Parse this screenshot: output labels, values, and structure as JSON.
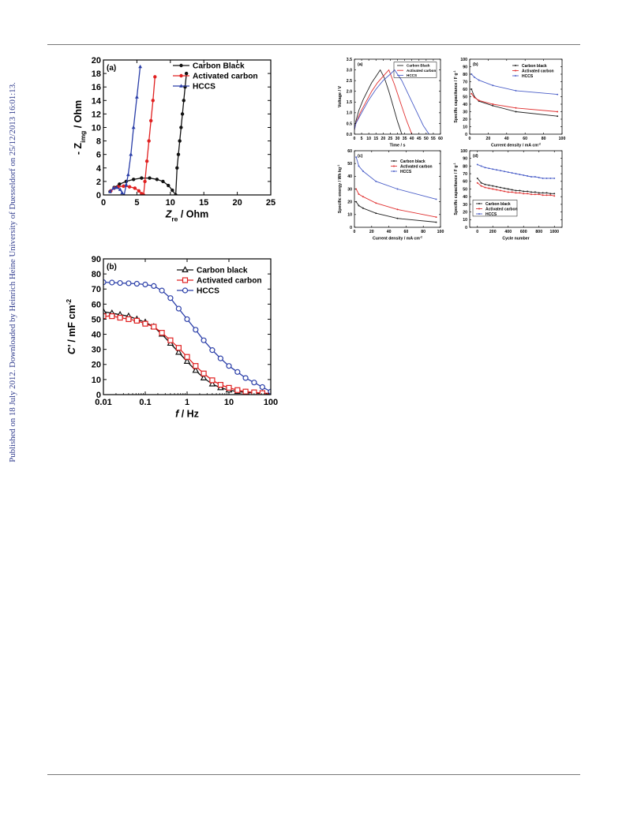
{
  "sidebar": {
    "note": "Published on 18 July 2012. Downloaded by Heinrich Heine University of Duesseldorf on 25/12/2013 16:01:13."
  },
  "chart_data": [
    {
      "panel": "(a)",
      "type": "scatter",
      "xlabel": "Z_re / Ohm",
      "ylabel": "- Z_img / Ohm",
      "xlim": [
        0,
        25
      ],
      "ylim": [
        0,
        20
      ],
      "xticks": [
        0,
        5,
        10,
        15,
        20,
        25
      ],
      "yticks": [
        0,
        2,
        4,
        6,
        8,
        10,
        12,
        14,
        16,
        18,
        20
      ],
      "legend": "top-right",
      "series": [
        {
          "name": "Carbon Black",
          "color": "#111111",
          "marker": "circle",
          "x": [
            1.0,
            1.6,
            2.4,
            3.4,
            4.5,
            5.7,
            6.9,
            8.0,
            8.9,
            9.7,
            10.3,
            10.8,
            11.0,
            11.2,
            11.4,
            11.6,
            11.8,
            12.0,
            12.2,
            12.4
          ],
          "y": [
            0.5,
            1.1,
            1.6,
            2.0,
            2.3,
            2.5,
            2.5,
            2.3,
            2.0,
            1.4,
            0.7,
            0.0,
            4.0,
            6.0,
            8.0,
            10.0,
            12.0,
            14.0,
            16.0,
            18.0
          ]
        },
        {
          "name": "Activated carbon",
          "color": "#e02020",
          "marker": "circle",
          "x": [
            1.1,
            1.6,
            2.2,
            3.0,
            3.9,
            4.7,
            5.3,
            5.7,
            6.0,
            6.2,
            6.5,
            6.8,
            7.1,
            7.4,
            7.7
          ],
          "y": [
            0.6,
            1.0,
            1.2,
            1.3,
            1.2,
            1.0,
            0.6,
            0.2,
            0.0,
            2.0,
            5.0,
            8.0,
            11.0,
            14.0,
            17.5
          ]
        },
        {
          "name": "HCCS",
          "color": "#2a3ea8",
          "marker": "triangle",
          "x": [
            1.0,
            1.5,
            2.0,
            2.5,
            2.8,
            3.1,
            3.4,
            3.7,
            4.1,
            4.5,
            5.0,
            5.5
          ],
          "y": [
            0.5,
            1.0,
            1.1,
            0.8,
            0.3,
            0.0,
            1.5,
            3.0,
            6.0,
            10.0,
            14.5,
            19.0
          ]
        }
      ]
    },
    {
      "panel": "(b)",
      "type": "line",
      "xlabel": "f / Hz",
      "ylabel": "C' / mF cm^-2",
      "xscale": "log",
      "xlim": [
        0.01,
        100
      ],
      "ylim": [
        0,
        90
      ],
      "xticks": [
        0.01,
        0.1,
        1,
        10,
        100
      ],
      "yticks": [
        0,
        10,
        20,
        30,
        40,
        50,
        60,
        70,
        80,
        90
      ],
      "legend": "top-right",
      "series": [
        {
          "name": "Carbon black",
          "color": "#111111",
          "marker": "triangle-open",
          "x": [
            0.01,
            0.016,
            0.025,
            0.04,
            0.063,
            0.1,
            0.16,
            0.25,
            0.4,
            0.63,
            1,
            1.6,
            2.5,
            4,
            6.3,
            10,
            16,
            25,
            40,
            63,
            100
          ],
          "y": [
            55,
            54,
            53,
            52,
            50,
            48,
            45,
            40,
            34,
            28,
            22,
            16,
            11,
            7,
            4.5,
            3,
            2,
            1.5,
            1,
            0.8,
            0.5
          ]
        },
        {
          "name": "Activated carbon",
          "color": "#e02020",
          "marker": "square-open",
          "x": [
            0.01,
            0.016,
            0.025,
            0.04,
            0.063,
            0.1,
            0.16,
            0.25,
            0.4,
            0.63,
            1,
            1.6,
            2.5,
            4,
            6.3,
            10,
            16,
            25,
            40,
            63,
            100
          ],
          "y": [
            52,
            52,
            51,
            50,
            49,
            47,
            45,
            41,
            36,
            31,
            25,
            19,
            14,
            9.5,
            6.5,
            4.5,
            3,
            2,
            1.5,
            1,
            0.8
          ]
        },
        {
          "name": "HCCS",
          "color": "#2a3ea8",
          "marker": "circle-open",
          "x": [
            0.01,
            0.016,
            0.025,
            0.04,
            0.063,
            0.1,
            0.16,
            0.25,
            0.4,
            0.63,
            1,
            1.6,
            2.5,
            4,
            6.3,
            10,
            16,
            25,
            40,
            63,
            100
          ],
          "y": [
            74.5,
            74.3,
            74,
            73.8,
            73.5,
            73,
            72,
            69,
            64,
            57,
            50,
            43,
            36,
            29.5,
            24,
            19,
            15,
            11,
            8,
            5,
            2
          ]
        }
      ]
    },
    {
      "panel": "(a)",
      "type": "line",
      "xlabel": "Time / s",
      "ylabel": "Voltage / V",
      "xlim": [
        0,
        60
      ],
      "ylim": [
        0,
        3.5
      ],
      "xticks": [
        0,
        5,
        10,
        15,
        20,
        25,
        30,
        35,
        40,
        45,
        50,
        55,
        60
      ],
      "yticks": [
        0.0,
        0.5,
        1.0,
        1.5,
        2.0,
        2.5,
        3.0,
        3.5
      ],
      "legend": "top-right",
      "series": [
        {
          "name": "Carbon Black",
          "color": "#222222",
          "x": [
            0,
            1,
            3,
            6,
            9,
            12,
            15,
            18,
            21,
            24,
            27,
            30,
            33
          ],
          "y": [
            0.2,
            0.6,
            1.1,
            1.6,
            2.0,
            2.4,
            2.7,
            3.0,
            2.6,
            2.0,
            1.3,
            0.6,
            0.0
          ]
        },
        {
          "name": "Activated carbon",
          "color": "#e03030",
          "x": [
            0,
            1,
            4,
            8,
            12,
            16,
            20,
            24,
            28,
            32,
            36,
            40
          ],
          "y": [
            0.2,
            0.5,
            1.0,
            1.5,
            2.0,
            2.4,
            2.7,
            3.0,
            2.3,
            1.5,
            0.7,
            0.0
          ]
        },
        {
          "name": "HCCS",
          "color": "#4a5ec8",
          "x": [
            0,
            1,
            5,
            10,
            15,
            20,
            25,
            28,
            33,
            38,
            43,
            48,
            52
          ],
          "y": [
            0.2,
            0.5,
            1.0,
            1.6,
            2.1,
            2.5,
            2.8,
            3.0,
            2.5,
            1.8,
            1.1,
            0.4,
            0.0
          ]
        }
      ]
    },
    {
      "panel": "(b)",
      "type": "line",
      "xlabel": "Current density / mA cm^-2",
      "ylabel": "Specific capacitance / F g^-1",
      "xlim": [
        0,
        100
      ],
      "ylim": [
        0,
        100
      ],
      "xticks": [
        0,
        20,
        40,
        60,
        80,
        100
      ],
      "yticks": [
        0,
        10,
        20,
        30,
        40,
        50,
        60,
        70,
        80,
        90,
        100
      ],
      "legend": "top-right",
      "series": [
        {
          "name": "Carbon black",
          "color": "#222222",
          "x": [
            2,
            5,
            10,
            25,
            50,
            95
          ],
          "y": [
            60,
            50,
            44,
            38,
            30,
            24
          ]
        },
        {
          "name": "Activated carbon",
          "color": "#e03030",
          "x": [
            2,
            5,
            10,
            25,
            50,
            95
          ],
          "y": [
            54,
            49,
            45,
            40,
            35,
            30
          ]
        },
        {
          "name": "HCCS",
          "color": "#4a5ec8",
          "x": [
            2,
            5,
            10,
            25,
            50,
            95
          ],
          "y": [
            80,
            76,
            72,
            65,
            58,
            53
          ]
        }
      ]
    },
    {
      "panel": "(c)",
      "type": "line",
      "xlabel": "Current density / mA cm^-2",
      "ylabel": "Specific energy / Wh kg^-1",
      "xlim": [
        0,
        100
      ],
      "ylim": [
        0,
        60
      ],
      "xticks": [
        0,
        20,
        40,
        60,
        80,
        100
      ],
      "yticks": [
        0,
        10,
        20,
        30,
        40,
        50,
        60
      ],
      "legend": "top-right",
      "series": [
        {
          "name": "Carbon black",
          "color": "#222222",
          "x": [
            2,
            5,
            10,
            25,
            50,
            95
          ],
          "y": [
            20,
            17,
            15,
            11,
            7,
            4
          ]
        },
        {
          "name": "Activated carbon",
          "color": "#e03030",
          "x": [
            2,
            5,
            10,
            25,
            50,
            95
          ],
          "y": [
            30,
            26,
            24,
            19,
            14,
            8
          ]
        },
        {
          "name": "HCCS",
          "color": "#4a5ec8",
          "x": [
            2,
            5,
            10,
            25,
            50,
            95
          ],
          "y": [
            55,
            48,
            44,
            36,
            30,
            22
          ]
        }
      ]
    },
    {
      "panel": "(d)",
      "type": "line",
      "xlabel": "Cycle number",
      "ylabel": "Specific capacitance / F g^-1",
      "xlim": [
        -100,
        1100
      ],
      "ylim": [
        0,
        100
      ],
      "xticks": [
        0,
        200,
        400,
        600,
        800,
        1000
      ],
      "yticks": [
        0,
        10,
        20,
        30,
        40,
        50,
        60,
        70,
        80,
        90,
        100
      ],
      "legend": "bottom-left",
      "series": [
        {
          "name": "Carbon black",
          "color": "#222222",
          "x": [
            0,
            50,
            100,
            150,
            200,
            250,
            300,
            350,
            400,
            450,
            500,
            550,
            600,
            650,
            700,
            750,
            800,
            850,
            900,
            950,
            1000
          ],
          "y": [
            64,
            58,
            56,
            55,
            54,
            53,
            52,
            51,
            50,
            49,
            48,
            48,
            47,
            47,
            46,
            46,
            45,
            45,
            45,
            44,
            44
          ]
        },
        {
          "name": "Activated carbon",
          "color": "#e03030",
          "x": [
            0,
            50,
            100,
            150,
            200,
            250,
            300,
            350,
            400,
            450,
            500,
            550,
            600,
            650,
            700,
            750,
            800,
            850,
            900,
            950,
            1000
          ],
          "y": [
            58,
            54,
            52,
            51,
            50,
            49,
            48,
            47,
            46,
            46,
            45,
            45,
            44,
            44,
            43,
            43,
            43,
            42,
            42,
            42,
            41
          ]
        },
        {
          "name": "HCCS",
          "color": "#4a5ec8",
          "x": [
            0,
            50,
            100,
            150,
            200,
            250,
            300,
            350,
            400,
            450,
            500,
            550,
            600,
            650,
            700,
            750,
            800,
            850,
            900,
            950,
            1000
          ],
          "y": [
            82,
            80,
            78,
            77,
            76,
            75,
            74,
            73,
            72,
            71,
            70,
            69,
            68,
            67,
            66,
            66,
            65,
            64,
            64,
            64,
            64
          ]
        }
      ]
    }
  ]
}
